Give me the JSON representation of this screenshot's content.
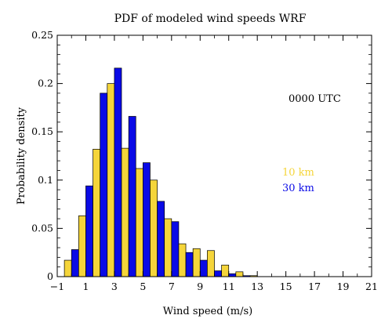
{
  "chart_data": {
    "type": "bar",
    "title": "PDF of modeled wind speeds WRF",
    "xlabel": "Wind speed (m/s)",
    "ylabel": "Probability density",
    "annotation": "0000 UTC",
    "xlim": [
      -1,
      21
    ],
    "ylim": [
      0,
      0.25
    ],
    "xticks": [
      -1,
      1,
      3,
      5,
      7,
      9,
      11,
      13,
      15,
      17,
      19,
      21
    ],
    "xtick_labels": [
      "−1",
      "1",
      "3",
      "5",
      "7",
      "9",
      "11",
      "13",
      "15",
      "17",
      "19",
      "21"
    ],
    "yticks": [
      0,
      0.05,
      0.1,
      0.15,
      0.2,
      0.25
    ],
    "ytick_labels": [
      "0",
      "0.05",
      "0.1",
      "0.15",
      "0.2",
      "0.25"
    ],
    "x": [
      0,
      1,
      2,
      3,
      4,
      5,
      6,
      7,
      8,
      9,
      10,
      11,
      12,
      13,
      14,
      15,
      16,
      17,
      18,
      19,
      20
    ],
    "series": [
      {
        "name": "10 km",
        "color": "#f5d53a",
        "values": [
          0.017,
          0.063,
          0.132,
          0.2,
          0.133,
          0.112,
          0.1,
          0.06,
          0.034,
          0.029,
          0.027,
          0.012,
          0.005,
          0.001,
          0.0,
          0.0,
          0.0,
          0.0,
          0.0,
          0.0,
          0.0
        ]
      },
      {
        "name": "30 km",
        "color": "#0a0ae6",
        "values": [
          0.028,
          0.094,
          0.19,
          0.216,
          0.166,
          0.118,
          0.078,
          0.057,
          0.025,
          0.017,
          0.006,
          0.003,
          0.001,
          0.0,
          0.0,
          0.0,
          0.0,
          0.0,
          0.0,
          0.0,
          0.0
        ]
      }
    ],
    "legend_placement": "center-right",
    "grid": false
  }
}
